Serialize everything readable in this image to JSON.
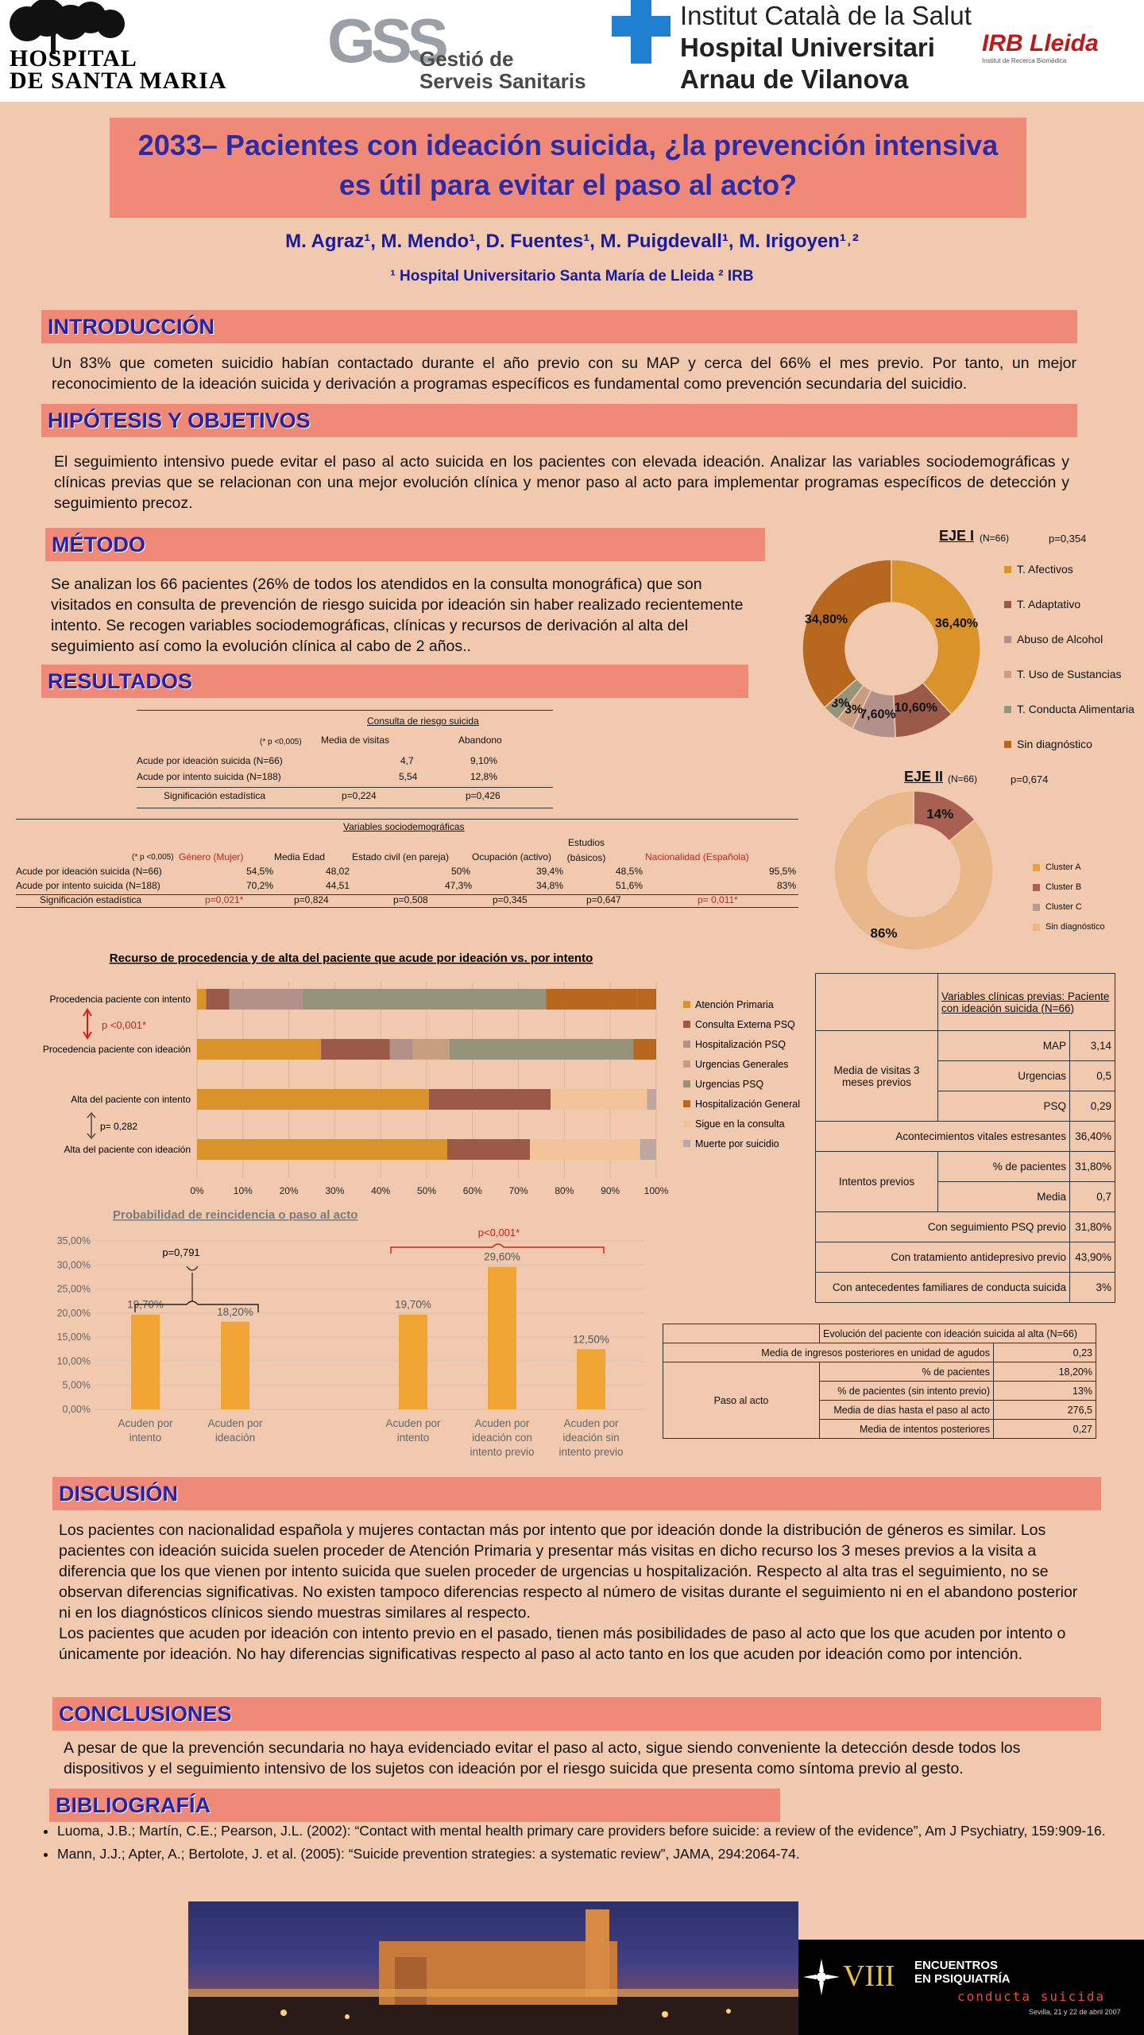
{
  "logos": {
    "hospital": [
      "Hospital",
      "de Santa Maria"
    ],
    "gss_initials": "GSS",
    "gss": [
      "Gestió de",
      "Serveis Sanitaris"
    ],
    "ics": [
      "Institut Català de la Salut",
      "Hospital Universitari",
      "Arnau de Vilanova"
    ],
    "irb": "IRB Lleida",
    "irb_sub": "Institut de Recerca Biomèdica"
  },
  "title": [
    "2033– Pacientes con ideación suicida, ¿la prevención intensiva",
    "es útil para evitar el paso al acto?"
  ],
  "authors": "M. Agraz¹, M. Mendo¹, D. Fuentes¹, M. Puigdevall¹, M. Irigoyen¹˒²",
  "affiliation": "¹ Hospital Universitario Santa María de Lleida   ² IRB",
  "sections": {
    "intro": "INTRODUCCIÓN",
    "hipo": "HIPÓTESIS Y OBJETIVOS",
    "metodo": "MÉTODO",
    "resultados": "RESULTADOS",
    "discusion": "DISCUSIÓN",
    "conclusiones": "CONCLUSIONES",
    "bibliografia": "BIBLIOGRAFÍA"
  },
  "intro_text": "Un 83% que cometen suicidio habían contactado durante el año previo con su MAP y cerca del 66% el mes previo. Por tanto, un mejor reconocimiento de la ideación suicida y derivación a programas específicos es fundamental como prevención secundaria del suicidio.",
  "hipo_text": "El seguimiento intensivo puede evitar el paso al acto suicida en los pacientes con elevada ideación. Analizar las variables sociodemográficas y clínicas previas que se relacionan con una mejor evolución clínica y menor paso al acto para implementar programas específicos de detección y seguimiento precoz.",
  "metodo_text": "Se analizan los 66 pacientes (26% de todos los atendidos en la consulta monográfica) que son visitados en consulta de prevención de riesgo suicida por ideación sin haber realizado recientemente intento. Se recogen variables sociodemográficas, clínicas y recursos de derivación al alta del seguimiento así como la evolución clínica al cabo de 2 años..",
  "consulta_table": {
    "title": "Consulta de riesgo suicida",
    "note": "(* p <0,005)",
    "headers": [
      "Media de visitas",
      "Abandono"
    ],
    "rows": [
      {
        "label": "Acude por ideación suicida (N=66)",
        "a": "4,7",
        "b": "9,10%"
      },
      {
        "label": "Acude por intento suicida (N=188)",
        "a": "5,54",
        "b": "12,8%"
      },
      {
        "label": "Significación estadística",
        "a": "p=0,224",
        "b": "p=0,426"
      }
    ]
  },
  "socio_table": {
    "title": "Variables sociodemográficas",
    "note": "(* p <0,005)",
    "headers": [
      "Género (Mujer)",
      "Media Edad",
      "Estado civil (en pareja)",
      "Ocupación (activo)",
      "Estudios (básicos)",
      "Nacionalidad (Española)"
    ],
    "rows": [
      {
        "label": "Acude por ideación suicida (N=66)",
        "cells": [
          "54,5%",
          "48,02",
          "50%",
          "39,4%",
          "48,5%",
          "95,5%"
        ]
      },
      {
        "label": "Acude por intento suicida (N=188)",
        "cells": [
          "70,2%",
          "44,51",
          "47,3%",
          "34,8%",
          "51,6%",
          "83%"
        ]
      },
      {
        "label": "Significación estadística",
        "cells": [
          "p=0,021*",
          "p=0,824",
          "p=0,508",
          "p=0,345",
          "p=0,647",
          "p= 0,011*"
        ]
      }
    ]
  },
  "chart_data": [
    {
      "type": "pie",
      "title": "EJE I",
      "n": "(N=66)",
      "p": "p=0,354",
      "donut": true,
      "slices": [
        {
          "label": "T. Afectivos",
          "value": 36.4,
          "text": "36,40%",
          "color": "#d9932a"
        },
        {
          "label": "T. Adaptativo",
          "value": 10.6,
          "text": "10,60%",
          "color": "#9b5a48"
        },
        {
          "label": "Abuso de Alcohol",
          "value": 7.6,
          "text": "7,60%",
          "color": "#b4908a"
        },
        {
          "label": "T. Uso de Sustancias",
          "value": 3,
          "text": "3%",
          "color": "#c79f80"
        },
        {
          "label": "T. Conducta Alimentaria",
          "value": 3,
          "text": "3%",
          "color": "#95947a"
        },
        {
          "label": "Sin diagnóstico",
          "value": 34.8,
          "text": "34,80%",
          "color": "#b8681e"
        }
      ]
    },
    {
      "type": "pie",
      "title": "EJE II",
      "n": "(N=66)",
      "p": "p=0,674",
      "donut": true,
      "slices": [
        {
          "label": "Cluster A",
          "value": 0,
          "text": "",
          "color": "#e8a040"
        },
        {
          "label": "Cluster B",
          "value": 14,
          "text": "14%",
          "color": "#a86050"
        },
        {
          "label": "Cluster C",
          "value": 0,
          "text": "",
          "color": "#b89890"
        },
        {
          "label": "Sin diagnóstico",
          "value": 86,
          "text": "86%",
          "color": "#e8b88a"
        }
      ]
    },
    {
      "type": "bar",
      "orientation": "horizontal",
      "stacked": true,
      "title": "Recurso de procedencia y de alta del paciente que acude por ideación vs. por intento",
      "categories": [
        "Procedencia paciente con intento",
        "Procedencia paciente con ideación",
        "Alta del paciente con intento",
        "Alta del paciente con ideación"
      ],
      "xlim": [
        0,
        100
      ],
      "xticks": [
        "0%",
        "10%",
        "20%",
        "30%",
        "40%",
        "50%",
        "60%",
        "70%",
        "80%",
        "90%",
        "100%"
      ],
      "annotations": [
        "p <0,001*",
        "p= 0,282"
      ],
      "series": [
        {
          "name": "Atención Primaria",
          "color": "#d9932a",
          "values": [
            2,
            27,
            50.5,
            54.5
          ]
        },
        {
          "name": "Consulta Externa PSQ",
          "color": "#9b5a48",
          "values": [
            5,
            15,
            26.5,
            18
          ]
        },
        {
          "name": "Hospitalización PSQ",
          "color": "#b4908a",
          "values": [
            16,
            5,
            0,
            0
          ]
        },
        {
          "name": "Urgencias Generales",
          "color": "#c79f80",
          "values": [
            0,
            8,
            0,
            0
          ]
        },
        {
          "name": "Urgencias PSQ",
          "color": "#95947a",
          "values": [
            53,
            40,
            0,
            0
          ]
        },
        {
          "name": "Hospitalización General",
          "color": "#b8681e",
          "values": [
            20,
            0,
            0,
            0
          ]
        },
        {
          "name": "Sigue en la consulta",
          "color": "#f3c49a",
          "values": [
            0,
            0,
            21,
            24
          ]
        },
        {
          "name": "Muerte por suicidio",
          "color": "#bfa6a0",
          "values": [
            0,
            0,
            2,
            3.5
          ]
        }
      ],
      "remainder_color": "#b8681e"
    },
    {
      "type": "bar",
      "title": "Probabilidad de reincidencia o paso al acto",
      "categories": [
        [
          "Acuden por",
          "intento"
        ],
        [
          "Acuden por",
          "ideación"
        ],
        [
          "Acuden por",
          "intento"
        ],
        [
          "Acuden por",
          "ideación con",
          "intento previo"
        ],
        [
          "Acuden por",
          "ideación sin",
          "intento previo"
        ]
      ],
      "values": [
        19.7,
        18.2,
        19.7,
        29.6,
        12.5
      ],
      "value_labels": [
        "19,70%",
        "18,20%",
        "19,70%",
        "29,60%",
        "12,50%"
      ],
      "ylim": [
        0,
        35
      ],
      "yticks": [
        "0,00%",
        "5,00%",
        "10,00%",
        "15,00%",
        "20,00%",
        "25,00%",
        "30,00%",
        "35,00%"
      ],
      "annotations": [
        "p=0,791",
        "p<0,001*"
      ],
      "color": "#f0a535"
    }
  ],
  "clinicas_table": {
    "header": "Variables clínicas previas: Paciente con ideación suicida (N=66)",
    "group1": "Media de visitas 3 meses previos",
    "visitas": [
      {
        "label": "MAP",
        "value": "3,14"
      },
      {
        "label": "Urgencias",
        "value": "0,5"
      },
      {
        "label": "PSQ",
        "value": "0,29"
      }
    ],
    "acontecimientos": {
      "label": "Acontecimientos vitales estresantes",
      "value": "36,40%"
    },
    "group2": "Intentos previos",
    "intentos": [
      {
        "label": "% de pacientes",
        "value": "31,80%"
      },
      {
        "label": "Media",
        "value": "0,7"
      }
    ],
    "extra": [
      {
        "label": "Con seguimiento PSQ previo",
        "value": "31,80%"
      },
      {
        "label": "Con tratamiento antidepresivo previo",
        "value": "43,90%"
      },
      {
        "label": "Con antecedentes familiares de conducta suicida",
        "value": "3%"
      }
    ]
  },
  "evolucion_table": {
    "header": "Evolución del paciente con ideación suicida al alta (N=66)",
    "ingresos": {
      "label": "Media de ingresos posteriores en unidad de agudos",
      "value": "0,23"
    },
    "group": "Paso al acto",
    "rows": [
      {
        "label": "% de pacientes",
        "value": "18,20%"
      },
      {
        "label": "% de pacientes (sin intento previo)",
        "value": "13%"
      },
      {
        "label": "Media de días hasta el paso al acto",
        "value": "276,5"
      },
      {
        "label": "Media de intentos posteriores",
        "value": "0,27"
      }
    ]
  },
  "discusion_text": [
    "Los pacientes con nacionalidad española y mujeres contactan más por  intento que por ideación donde la distribución de géneros es similar. Los pacientes con ideación suicida suelen proceder de Atención Primaria y presentar más visitas en dicho recurso los 3 meses previos a la visita a diferencia que los que vienen por intento suicida que suelen proceder de urgencias u hospitalización. Respecto al alta tras el seguimiento, no se observan diferencias significativas. No existen tampoco diferencias respecto al número de visitas durante el seguimiento ni en el abandono posterior ni en los diagnósticos clínicos siendo muestras similares al respecto.",
    "Los pacientes que acuden por ideación con intento previo en el pasado, tienen más posibilidades de paso al acto que los que acuden por intento o únicamente por ideación. No hay diferencias significativas respecto al paso al acto tanto en los que acuden por ideación como por intención."
  ],
  "conclusiones_text": "A pesar de que la prevención secundaria no haya evidenciado evitar el paso al acto, sigue siendo conveniente la detección desde todos los dispositivos y el seguimiento intensivo de los sujetos con ideación por el riesgo suicida que presenta como síntoma previo al gesto.",
  "bibliografia": [
    "Luoma, J.B.; Martín, C.E.; Pearson, J.L. (2002): “Contact with mental health primary care providers before suicide: a review of the evidence”, Am J Psychiatry,  159:909-16.",
    "Mann, J.J.; Apter, A.; Bertolote, J. et al. (2005): “Suicide prevention strategies: a systematic review”, JAMA, 294:2064-74."
  ],
  "footer": {
    "viii": "VIII",
    "encuentros": [
      "ENCUENTROS",
      "EN PSIQUIATRÍA"
    ],
    "conducta": "conducta suicida",
    "fecha": "Sevilla, 21 y 22 de abril 2007"
  }
}
